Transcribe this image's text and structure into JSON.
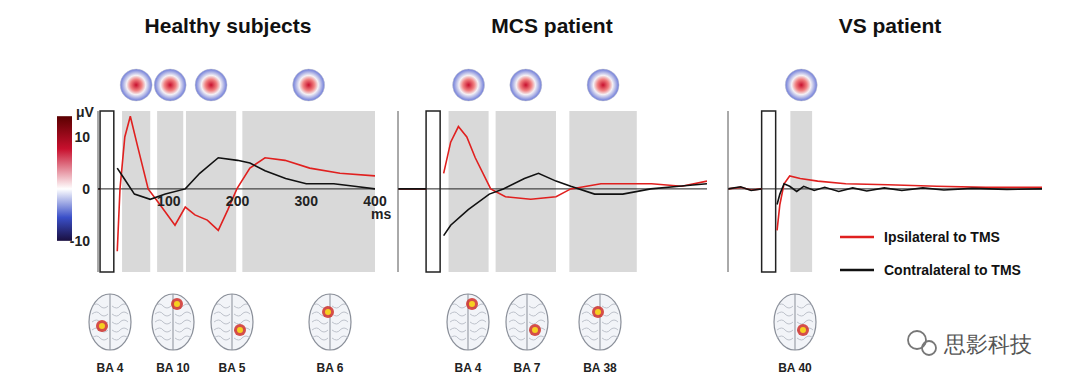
{
  "chart_data": [
    {
      "type": "line",
      "title": "Healthy subjects",
      "xlim": [
        -3,
        400
      ],
      "ylim": [
        -16,
        15
      ],
      "xticks": [
        100,
        200,
        300,
        400
      ],
      "yticks": [
        -10,
        0,
        10
      ],
      "x_label": "ms",
      "y_label": "μV",
      "colorbar": {
        "range": [
          -10,
          14
        ]
      },
      "tms_window": [
        0,
        20
      ],
      "windows": [
        {
          "range": [
            32,
            73
          ],
          "region": "BA 4"
        },
        {
          "range": [
            83,
            121
          ],
          "region": "BA 10"
        },
        {
          "range": [
            125,
            198
          ],
          "region": "BA 5"
        },
        {
          "range": [
            207,
            400
          ],
          "region": "BA 6"
        }
      ],
      "series": [
        {
          "name": "Ipsilateral to TMS",
          "color": "#e0201f",
          "x": [
            -3,
            0,
            10,
            25,
            29,
            36,
            44,
            55,
            70,
            87,
            109,
            124,
            138,
            156,
            172,
            186,
            199,
            218,
            240,
            269,
            305,
            349,
            400
          ],
          "values": [
            0,
            0,
            null,
            -12,
            0,
            10,
            14,
            8,
            0,
            -3,
            -7,
            -3.5,
            -5,
            -6,
            -8,
            -4,
            0,
            4,
            6,
            5.5,
            4,
            3,
            2.5
          ]
        },
        {
          "name": "Contralateral to TMS",
          "color": "#111111",
          "x": [
            -3,
            0,
            10,
            25,
            35,
            50,
            73,
            95,
            124,
            145,
            172,
            200,
            218,
            240,
            270,
            300,
            340,
            370,
            400
          ],
          "values": [
            0,
            0,
            null,
            4,
            2,
            -1,
            -2,
            -1,
            0,
            3,
            6,
            5.5,
            5,
            3.5,
            2,
            1,
            1,
            0.5,
            0
          ]
        }
      ]
    },
    {
      "type": "line",
      "title": "MCS patient",
      "xlim": [
        -40,
        400
      ],
      "ylim": [
        -16,
        15
      ],
      "tick_labels": false,
      "tms_window": [
        0,
        20
      ],
      "windows": [
        {
          "range": [
            32,
            89
          ],
          "region": "BA 4"
        },
        {
          "range": [
            99,
            185
          ],
          "region": "BA 7"
        },
        {
          "range": [
            204,
            300
          ],
          "region": "BA 38"
        }
      ],
      "series": [
        {
          "name": "Ipsilateral to TMS",
          "color": "#e0201f",
          "x": [
            -40,
            0,
            10,
            25,
            35,
            46,
            58,
            70,
            92,
            113,
            149,
            185,
            206,
            249,
            321,
            364,
            400
          ],
          "values": [
            0,
            0,
            null,
            3,
            9,
            12,
            10,
            6,
            0,
            -1.5,
            -2,
            -1.5,
            0,
            1,
            1,
            0.5,
            1.5
          ]
        },
        {
          "name": "Contralateral to TMS",
          "color": "#111111",
          "x": [
            -40,
            0,
            10,
            25,
            35,
            60,
            90,
            110,
            140,
            160,
            185,
            206,
            240,
            280,
            320,
            360,
            400
          ],
          "values": [
            0,
            0,
            null,
            -9,
            -7,
            -4,
            -1,
            0,
            2,
            3,
            1.5,
            0.5,
            -1,
            -1,
            0,
            0.5,
            1
          ]
        }
      ]
    },
    {
      "type": "line",
      "title": "VS patient",
      "xlim": [
        -48,
        400
      ],
      "ylim": [
        -16,
        15
      ],
      "tick_labels": false,
      "tms_window": [
        0,
        20
      ],
      "legend": "lower right",
      "windows": [
        {
          "range": [
            41,
            72
          ],
          "region": "BA 40"
        }
      ],
      "series": [
        {
          "name": "Ipsilateral to TMS",
          "color": "#e0201f",
          "x": [
            -48,
            -30,
            -15,
            0,
            10,
            22,
            26,
            32,
            40,
            55,
            80,
            120,
            180,
            250,
            320,
            400
          ],
          "values": [
            0,
            0.3,
            -0.2,
            0,
            null,
            -8,
            -3,
            1,
            2.5,
            2,
            1.5,
            1,
            0.8,
            0.5,
            0.3,
            0.3
          ]
        },
        {
          "name": "Contralateral to TMS",
          "color": "#111111",
          "x": [
            -48,
            -30,
            -15,
            0,
            10,
            22,
            26,
            32,
            40,
            50,
            60,
            75,
            90,
            110,
            130,
            150,
            175,
            200,
            230,
            260,
            300,
            350,
            400
          ],
          "values": [
            0,
            0.4,
            -0.3,
            0,
            null,
            -3,
            -1,
            1,
            0.5,
            -0.5,
            0.5,
            -0.3,
            0.3,
            -0.5,
            0.2,
            -0.4,
            0.2,
            -0.3,
            0.2,
            -0.2,
            0.1,
            -0.1,
            0
          ]
        }
      ]
    }
  ],
  "watermark": "思影科技"
}
